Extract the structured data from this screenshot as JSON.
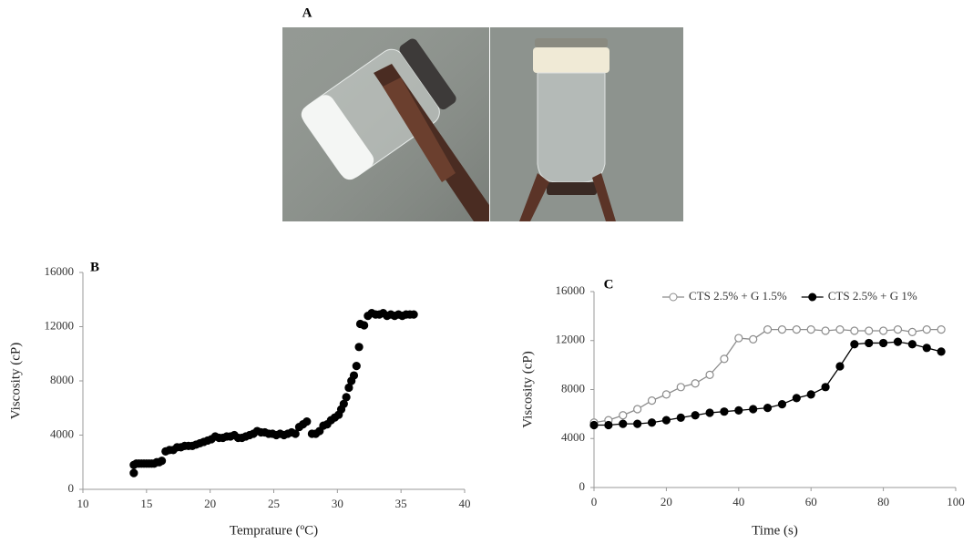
{
  "photo_panel": {
    "label": "A"
  },
  "chart_data": [
    {
      "type": "scatter",
      "label": "B",
      "x_label": "Temprature (ºC)",
      "y_label": "Viscosity (cP)",
      "x": [
        14,
        14,
        14.2,
        14.4,
        14.6,
        14.8,
        15,
        15.2,
        15.4,
        15.6,
        15.8,
        16,
        16.2,
        16.5,
        16.8,
        17.1,
        17.4,
        17.7,
        18,
        18.3,
        18.6,
        18.9,
        19.2,
        19.5,
        19.8,
        20.1,
        20.4,
        20.7,
        21,
        21.3,
        21.6,
        21.9,
        22.2,
        22.5,
        22.8,
        23.1,
        23.4,
        23.7,
        24,
        24.3,
        24.6,
        24.9,
        25.2,
        25.5,
        25.8,
        26.1,
        26.4,
        26.7,
        27,
        27.3,
        27.6,
        28,
        28.3,
        28.6,
        28.9,
        29.2,
        29.5,
        29.8,
        30.1,
        30.3,
        30.5,
        30.7,
        30.9,
        31.1,
        31.3,
        31.5,
        31.7,
        31.8,
        32.1,
        32.4,
        32.7,
        33,
        33.3,
        33.6,
        33.9,
        34.2,
        34.5,
        34.8,
        35.1,
        35.4,
        35.7,
        36
      ],
      "values": [
        1200,
        1800,
        1900,
        1900,
        1900,
        1900,
        1900,
        1900,
        1900,
        1900,
        2000,
        2000,
        2100,
        2800,
        2900,
        2900,
        3100,
        3100,
        3200,
        3200,
        3200,
        3300,
        3400,
        3500,
        3600,
        3700,
        3900,
        3800,
        3800,
        3900,
        3900,
        4000,
        3800,
        3800,
        3900,
        4000,
        4100,
        4300,
        4200,
        4200,
        4100,
        4100,
        4000,
        4100,
        4000,
        4100,
        4200,
        4100,
        4600,
        4800,
        5000,
        4100,
        4100,
        4300,
        4700,
        4800,
        5100,
        5300,
        5500,
        5900,
        6300,
        6800,
        7500,
        8000,
        8400,
        9100,
        10500,
        12200,
        12100,
        12800,
        13000,
        12900,
        12900,
        13000,
        12800,
        12900,
        12800,
        12900,
        12800,
        12900,
        12900,
        12900
      ],
      "color": "#000000",
      "marker": "filled",
      "xlim": [
        10,
        40
      ],
      "xticks": [
        10,
        15,
        20,
        25,
        30,
        35,
        40
      ],
      "ylim": [
        0,
        16000
      ],
      "yticks": [
        0,
        4000,
        8000,
        12000,
        16000
      ]
    },
    {
      "type": "line",
      "label": "C",
      "x_label": "Time (s)",
      "y_label": "Viscosity (cP)",
      "x": [
        0,
        4,
        8,
        12,
        16,
        20,
        24,
        28,
        32,
        36,
        40,
        44,
        48,
        52,
        56,
        60,
        64,
        68,
        72,
        76,
        80,
        84,
        88,
        92,
        96
      ],
      "series": [
        {
          "name": "CTS 2.5% + G 1.5%",
          "color": "#8c8c8c",
          "marker": "open",
          "values": [
            5300,
            5500,
            5900,
            6400,
            7100,
            7600,
            8200,
            8500,
            9200,
            10500,
            12200,
            12100,
            12900,
            12900,
            12900,
            12900,
            12800,
            12900,
            12800,
            12800,
            12800,
            12900,
            12700,
            12900,
            12900
          ]
        },
        {
          "name": "CTS 2.5% + G 1%",
          "color": "#000000",
          "marker": "filled",
          "values": [
            5100,
            5100,
            5200,
            5200,
            5300,
            5500,
            5700,
            5900,
            6100,
            6200,
            6300,
            6400,
            6500,
            6800,
            7300,
            7600,
            8200,
            9900,
            11700,
            11800,
            11800,
            11900,
            11700,
            11400,
            11100
          ]
        }
      ],
      "xlim": [
        0,
        100
      ],
      "xticks": [
        0,
        20,
        40,
        60,
        80,
        100
      ],
      "ylim": [
        0,
        16000
      ],
      "yticks": [
        0,
        4000,
        8000,
        12000,
        16000
      ]
    }
  ]
}
